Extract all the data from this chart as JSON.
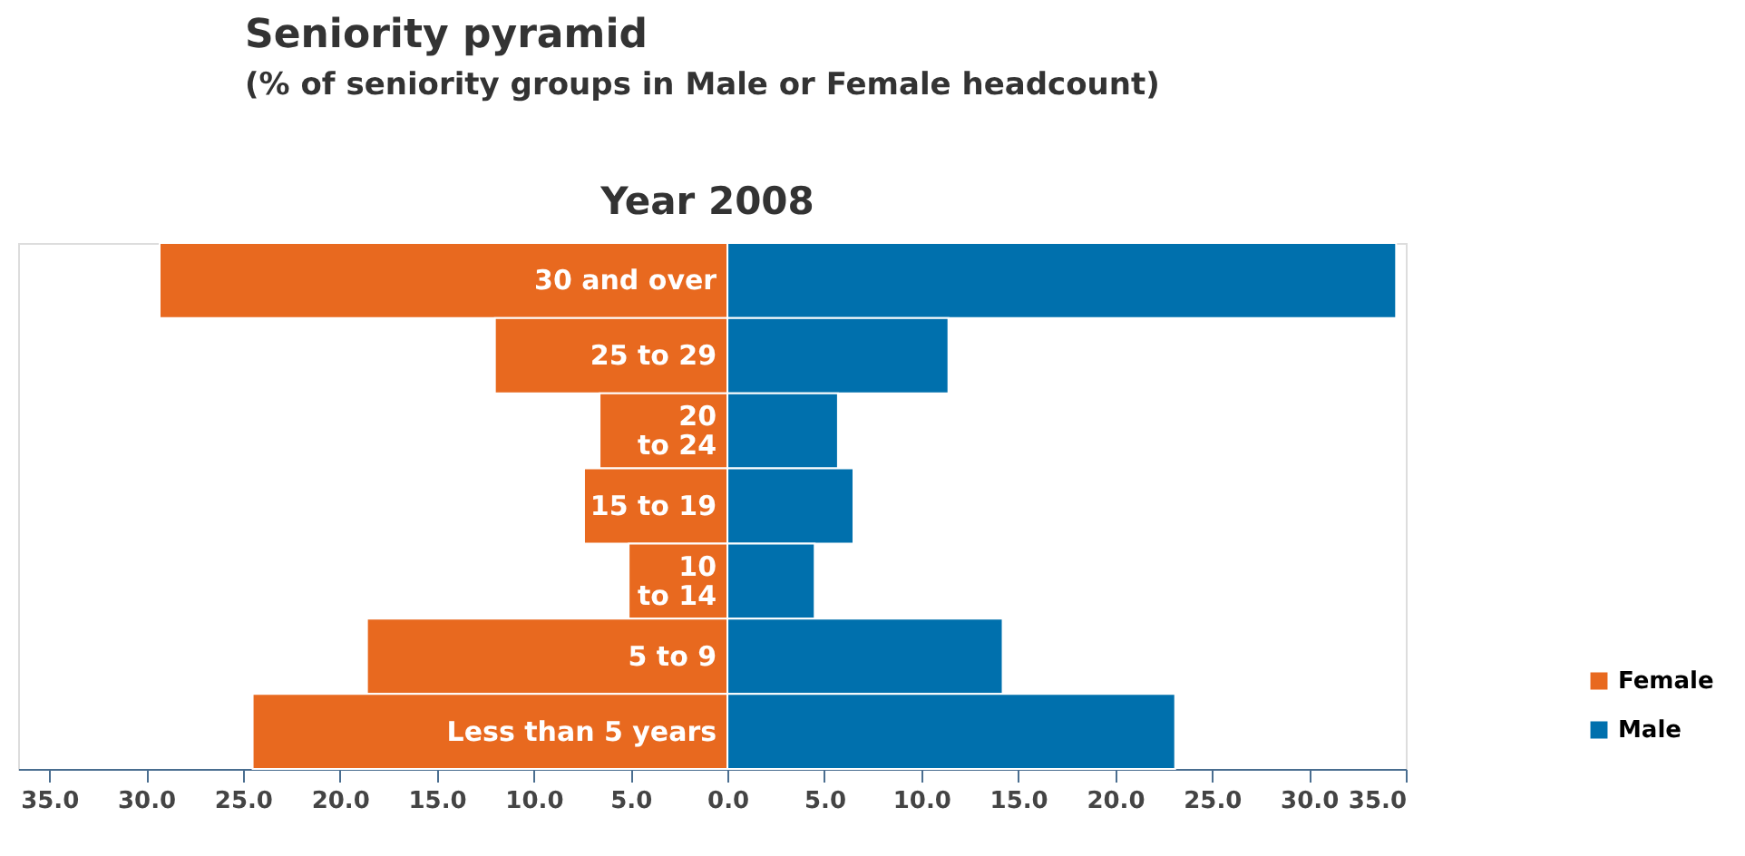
{
  "chart_data": {
    "type": "bar",
    "orientation": "horizontal",
    "title": "Seniority pyramid",
    "subtitle": "(% of seniority groups in Male or Female headcount)",
    "annotations": [
      "Year 2008"
    ],
    "categories": [
      "30 and over",
      "25 to 29",
      "20 to 24",
      "15 to 19",
      "10 to 14",
      "5 to 9",
      "Less than 5 years"
    ],
    "series": [
      {
        "name": "Female",
        "color": "#e8691f",
        "values": [
          -29.3,
          -12.0,
          -6.6,
          -7.4,
          -5.1,
          -18.6,
          -24.5
        ]
      },
      {
        "name": "Male",
        "color": "#0070ad",
        "values": [
          34.5,
          11.4,
          5.7,
          6.5,
          4.5,
          14.2,
          23.1
        ]
      }
    ],
    "xlim": [
      -36.6,
      35
    ],
    "xticks": [
      {
        "value": -35,
        "label": "35.0"
      },
      {
        "value": -30,
        "label": "30.0"
      },
      {
        "value": -25,
        "label": "25.0"
      },
      {
        "value": -20,
        "label": "20.0"
      },
      {
        "value": -15,
        "label": "15.0"
      },
      {
        "value": -10,
        "label": "10.0"
      },
      {
        "value": -5,
        "label": "5.0"
      },
      {
        "value": 0,
        "label": "0.0"
      },
      {
        "value": 5,
        "label": "5.0"
      },
      {
        "value": 10,
        "label": "10.0"
      },
      {
        "value": 15,
        "label": "15.0"
      },
      {
        "value": 20,
        "label": "20.0"
      },
      {
        "value": 25,
        "label": "25.0"
      },
      {
        "value": 30,
        "label": "30.0"
      },
      {
        "value": 35,
        "label": "35.0"
      }
    ],
    "stacked": true,
    "grid": false,
    "legend": "bottom right",
    "tick_labels": "x"
  }
}
